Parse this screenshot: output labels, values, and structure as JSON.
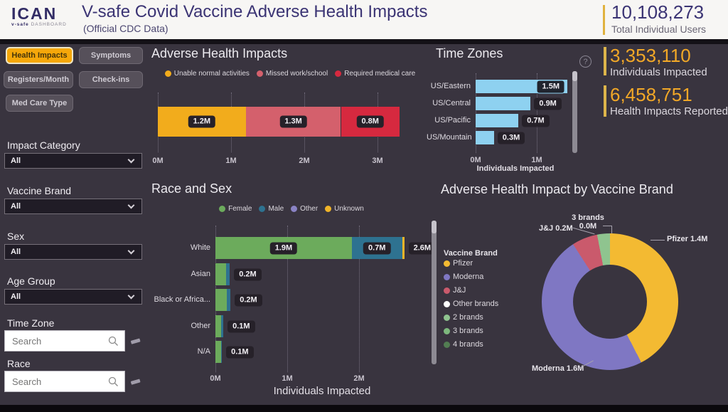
{
  "icons": {
    "help": "?"
  },
  "header": {
    "logo_main": "ICAN",
    "logo_sub_bold": "v-safe",
    "logo_sub": "DASHBOARD",
    "title": "V-safe Covid Vaccine Adverse Health Impacts",
    "subtitle": "(Official CDC Data)",
    "total_value": "10,108,273",
    "total_label": "Total Individual Users"
  },
  "sidebar": {
    "nav": [
      {
        "label": "Health Impacts",
        "active": true
      },
      {
        "label": "Symptoms",
        "active": false
      },
      {
        "label": "Registers/Month",
        "active": false
      },
      {
        "label": "Check-ins",
        "active": false
      },
      {
        "label": "Med Care Type",
        "active": false
      }
    ],
    "filters": {
      "impact_category": {
        "label": "Impact Category",
        "value": "All"
      },
      "vaccine_brand": {
        "label": "Vaccine Brand",
        "value": "All"
      },
      "sex": {
        "label": "Sex",
        "value": "All"
      },
      "age_group": {
        "label": "Age Group",
        "value": "All"
      },
      "time_zone": {
        "label": "Time Zone",
        "placeholder": "Search"
      },
      "race": {
        "label": "Race",
        "placeholder": "Search"
      }
    }
  },
  "kpis": [
    {
      "value": "3,353,110",
      "label": "Individuals Impacted"
    },
    {
      "value": "6,458,751",
      "label": "Health Impacts Reported"
    }
  ],
  "chart_data": [
    {
      "id": "adverse-health-impacts",
      "type": "bar",
      "variant": "stacked-horizontal-single-bar",
      "title": "Adverse Health Impacts",
      "series": [
        {
          "name": "Unable normal activities",
          "value": 1.2,
          "label": "1.2M",
          "color": "#f2ac1c"
        },
        {
          "name": "Missed work/school",
          "value": 1.3,
          "label": "1.3M",
          "color": "#d4606c"
        },
        {
          "name": "Required medical care",
          "value": 0.8,
          "label": "0.8M",
          "color": "#d6293f"
        }
      ],
      "x_ticks": [
        {
          "v": 0,
          "label": "0M"
        },
        {
          "v": 1,
          "label": "1M"
        },
        {
          "v": 2,
          "label": "2M"
        },
        {
          "v": 3,
          "label": "3M"
        }
      ],
      "xlim": [
        0,
        3.3
      ],
      "unit": "M",
      "legend_position": "top"
    },
    {
      "id": "time-zones",
      "type": "bar",
      "variant": "horizontal",
      "title": "Time Zones",
      "categories": [
        "US/Eastern",
        "US/Central",
        "US/Pacific",
        "US/Mountain"
      ],
      "values": [
        1.5,
        0.9,
        0.7,
        0.3
      ],
      "value_labels": [
        "1.5M",
        "0.9M",
        "0.7M",
        "0.3M"
      ],
      "bar_color": "#8ed1f0",
      "x_ticks": [
        {
          "v": 0,
          "label": "0M"
        },
        {
          "v": 1,
          "label": "1M"
        }
      ],
      "xlim": [
        0,
        1.6
      ],
      "xlabel": "Individuals Impacted"
    },
    {
      "id": "race-and-sex",
      "type": "bar",
      "variant": "stacked-horizontal",
      "title": "Race and Sex",
      "legend": [
        {
          "name": "Female",
          "color": "#6cab5c"
        },
        {
          "name": "Male",
          "color": "#2e7290"
        },
        {
          "name": "Other",
          "color": "#8a83c5"
        },
        {
          "name": "Unknown",
          "color": "#f0b429"
        }
      ],
      "rows": [
        {
          "category": "White",
          "total_label": "2.6M",
          "segments": [
            {
              "series": "Female",
              "value": 1.9,
              "label": "1.9M"
            },
            {
              "series": "Male",
              "value": 0.7,
              "label": "0.7M"
            },
            {
              "series": "Unknown",
              "value": 0.03
            }
          ]
        },
        {
          "category": "Asian",
          "total_label": "0.2M",
          "segments": [
            {
              "series": "Female",
              "value": 0.15
            },
            {
              "series": "Male",
              "value": 0.05
            }
          ]
        },
        {
          "category": "Black or Africa...",
          "total_label": "0.2M",
          "segments": [
            {
              "series": "Female",
              "value": 0.16
            },
            {
              "series": "Male",
              "value": 0.05
            }
          ]
        },
        {
          "category": "Other",
          "total_label": "0.1M",
          "segments": [
            {
              "series": "Female",
              "value": 0.08
            },
            {
              "series": "Male",
              "value": 0.03
            }
          ]
        },
        {
          "category": "N/A",
          "total_label": "0.1M",
          "segments": [
            {
              "series": "Female",
              "value": 0.08
            },
            {
              "series": "Male",
              "value": 0.01
            }
          ]
        }
      ],
      "x_ticks": [
        {
          "v": 0,
          "label": "0M"
        },
        {
          "v": 1,
          "label": "1M"
        },
        {
          "v": 2,
          "label": "2M"
        }
      ],
      "xlim": [
        0,
        2.9
      ],
      "xlabel": "Individuals Impacted"
    },
    {
      "id": "adverse-health-impact-by-vaccine-brand",
      "type": "pie",
      "variant": "donut",
      "title": "Adverse Health Impact by Vaccine Brand",
      "legend_title": "Vaccine Brand",
      "legend": [
        {
          "name": "Pfizer",
          "color": "#f3ba32"
        },
        {
          "name": "Moderna",
          "color": "#7f77c3"
        },
        {
          "name": "J&J",
          "color": "#ca5a6c"
        },
        {
          "name": "Other brands",
          "color": "#ffffff"
        },
        {
          "name": "2 brands",
          "color": "#8fc48f"
        },
        {
          "name": "3 brands",
          "color": "#7db87d"
        },
        {
          "name": "4 brands",
          "color": "#527d52"
        }
      ],
      "slices": [
        {
          "name": "Pfizer",
          "value": 1.4,
          "label": "Pfizer 1.4M",
          "color": "#f3ba32"
        },
        {
          "name": "Moderna",
          "value": 1.6,
          "label": "Moderna 1.6M",
          "color": "#7f77c3"
        },
        {
          "name": "J&J",
          "value": 0.2,
          "label": "J&J 0.2M",
          "color": "#ca5a6c"
        },
        {
          "name": "2 brands",
          "value": 0.1,
          "color": "#8fc48f"
        }
      ],
      "callouts": {
        "top_name": "3 brands",
        "top_value": "0.0M",
        "jj": "J&J 0.2M",
        "pfizer": "Pfizer 1.4M",
        "moderna": "Moderna 1.6M"
      }
    }
  ]
}
